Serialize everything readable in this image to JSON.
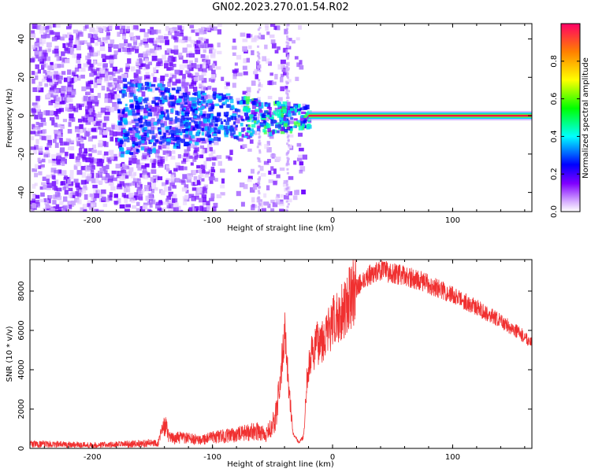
{
  "title": "GN02.2023.270.01.54.R02",
  "chart_data": [
    {
      "type": "heatmap",
      "xlabel": "Height of straight line (km)",
      "ylabel": "Frequency (Hz)",
      "xlim": [
        -252,
        166
      ],
      "ylim": [
        -50,
        48
      ],
      "xticks": [
        -200,
        -100,
        0,
        100
      ],
      "yticks": [
        -40,
        -20,
        0,
        20,
        40
      ],
      "colorbar": {
        "label": "Normalized spectral amplitude",
        "range": [
          0,
          1
        ],
        "ticks": [
          "0.0",
          "0.2",
          "0.4",
          "0.6",
          "0.8"
        ],
        "tick_values": [
          0.0,
          0.2,
          0.4,
          0.6,
          0.8
        ]
      },
      "features": {
        "carrier_frequency": 0,
        "carrier_x_start": -20,
        "carrier_x_end": 166,
        "diffuse_region": [
          -252,
          -40
        ],
        "gap_region": [
          -100,
          -60
        ]
      }
    },
    {
      "type": "line",
      "xlabel": "Height of straight line (km)",
      "ylabel": "SNR (10 * v/v)",
      "xlim": [
        -252,
        166
      ],
      "ylim": [
        0,
        9600
      ],
      "xticks": [
        -200,
        -100,
        0,
        100
      ],
      "yticks": [
        0,
        2000,
        4000,
        6000,
        8000
      ],
      "color": "#f03030",
      "profile": [
        {
          "x": -252,
          "y": 220
        },
        {
          "x": -220,
          "y": 200
        },
        {
          "x": -200,
          "y": 170
        },
        {
          "x": -180,
          "y": 190
        },
        {
          "x": -160,
          "y": 250
        },
        {
          "x": -145,
          "y": 300
        },
        {
          "x": -140,
          "y": 1200
        },
        {
          "x": -135,
          "y": 500
        },
        {
          "x": -125,
          "y": 550
        },
        {
          "x": -115,
          "y": 450
        },
        {
          "x": -105,
          "y": 500
        },
        {
          "x": -95,
          "y": 600
        },
        {
          "x": -85,
          "y": 650
        },
        {
          "x": -75,
          "y": 750
        },
        {
          "x": -65,
          "y": 900
        },
        {
          "x": -55,
          "y": 700
        },
        {
          "x": -48,
          "y": 1400
        },
        {
          "x": -44,
          "y": 3000
        },
        {
          "x": -40,
          "y": 6000
        },
        {
          "x": -37,
          "y": 3500
        },
        {
          "x": -33,
          "y": 800
        },
        {
          "x": -28,
          "y": 300
        },
        {
          "x": -24,
          "y": 600
        },
        {
          "x": -21,
          "y": 3800
        },
        {
          "x": -17,
          "y": 4800
        },
        {
          "x": -12,
          "y": 5400
        },
        {
          "x": -5,
          "y": 5800
        },
        {
          "x": 0,
          "y": 6300
        },
        {
          "x": 10,
          "y": 7200
        },
        {
          "x": 20,
          "y": 8200
        },
        {
          "x": 30,
          "y": 8800
        },
        {
          "x": 40,
          "y": 9050
        },
        {
          "x": 55,
          "y": 8850
        },
        {
          "x": 75,
          "y": 8500
        },
        {
          "x": 100,
          "y": 7800
        },
        {
          "x": 125,
          "y": 7000
        },
        {
          "x": 150,
          "y": 6100
        },
        {
          "x": 166,
          "y": 5400
        }
      ]
    }
  ]
}
